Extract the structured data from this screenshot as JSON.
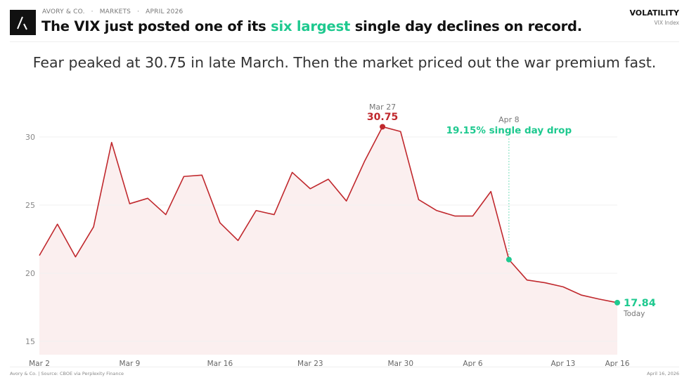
{
  "header": {
    "brand": "AVORY & CO.",
    "section": "MARKETS",
    "date": "APRIL 2026",
    "separator": "·",
    "title_pre": "The VIX just posted one of its ",
    "title_highlight": "six largest",
    "title_post": " single day declines on record.",
    "category": "VOLATILITY",
    "category_sub": "VIX Index"
  },
  "subtitle": "Fear peaked at 30.75 in late March. Then the market priced out the war premium fast.",
  "footer": {
    "source": "Avory & Co.  |  Source: CBOE via Perplexity Finance",
    "date": "April 16, 2026"
  },
  "colors": {
    "line": "#c0282d",
    "fill": "#fbefef",
    "accent": "#1ec98f",
    "grid": "#f0f0f0"
  },
  "chart_data": {
    "type": "line",
    "title": "VIX Index",
    "xlabel": "",
    "ylabel": "",
    "ylim": [
      14,
      32
    ],
    "yticks": [
      15,
      20,
      25,
      30
    ],
    "grid": true,
    "x_tick_labels": [
      {
        "index": 0,
        "label": "Mar 2"
      },
      {
        "index": 5,
        "label": "Mar 9"
      },
      {
        "index": 10,
        "label": "Mar 16"
      },
      {
        "index": 15,
        "label": "Mar 23"
      },
      {
        "index": 20,
        "label": "Mar 30"
      },
      {
        "index": 24,
        "label": "Apr 6"
      },
      {
        "index": 29,
        "label": "Apr 13"
      },
      {
        "index": 32,
        "label": "Apr 16"
      }
    ],
    "values": [
      21.3,
      23.6,
      21.2,
      23.4,
      29.6,
      25.1,
      25.5,
      24.3,
      27.1,
      27.2,
      23.7,
      22.4,
      24.6,
      24.3,
      27.4,
      26.2,
      26.9,
      25.3,
      28.2,
      30.75,
      30.4,
      25.4,
      24.6,
      24.2,
      24.2,
      26.0,
      21.0,
      19.5,
      19.3,
      19.0,
      18.4,
      18.1,
      17.84
    ],
    "annotations": {
      "peak": {
        "index": 19,
        "date": "Mar 27",
        "value": "30.75"
      },
      "drop": {
        "index": 26,
        "date": "Apr 8",
        "text": "19.15% single day drop"
      },
      "last": {
        "index": 32,
        "value": "17.84",
        "label": "Today"
      }
    }
  }
}
